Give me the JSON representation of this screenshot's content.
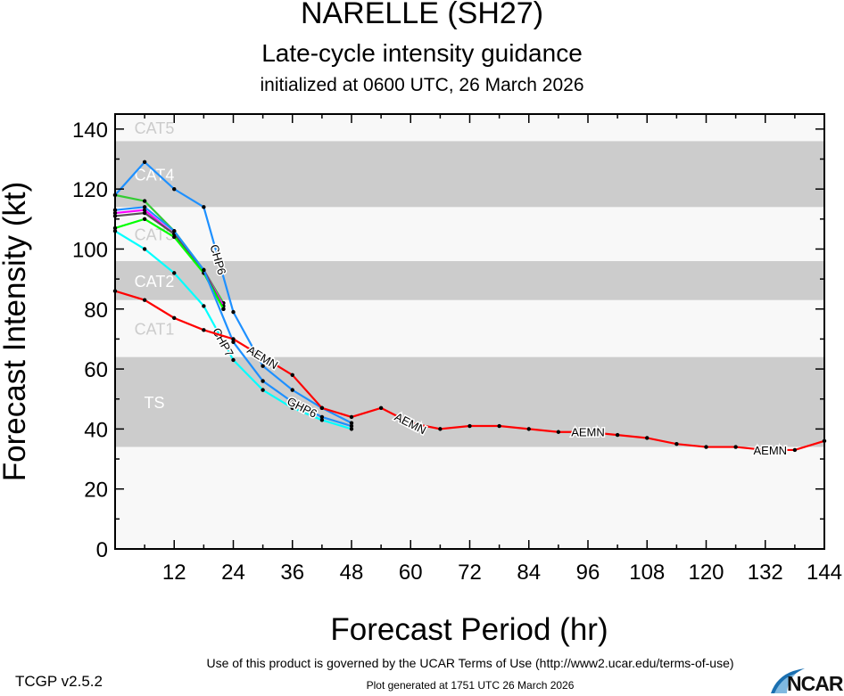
{
  "header": {
    "title": "NARELLE (SH27)",
    "subtitle": "Late-cycle intensity guidance",
    "initialized": "initialized at 0600 UTC, 26 March 2026"
  },
  "footer": {
    "terms": "Use of this product is governed by the UCAR Terms of Use (http://www2.ucar.edu/terms-of-use)",
    "generated": "Plot generated at 1751 UTC   26 March 2026",
    "version": "TCGP v2.5.2",
    "logo": "NCAR"
  },
  "chart_data": {
    "type": "line",
    "xlabel": "Forecast Period (hr)",
    "ylabel": "Forecast Intensity (kt)",
    "xlim": [
      0,
      144
    ],
    "ylim": [
      0,
      145
    ],
    "xticks": [
      12,
      24,
      36,
      48,
      60,
      72,
      84,
      96,
      108,
      120,
      132,
      144
    ],
    "yticks": [
      0,
      20,
      40,
      60,
      80,
      100,
      120,
      140
    ],
    "grid": false,
    "categories_bands": [
      {
        "label": "TS",
        "min": 34,
        "max": 64,
        "fill": "#cccccc",
        "text_color": "#ffffff"
      },
      {
        "label": "CAT1",
        "min": 64,
        "max": 83,
        "fill": "#f8f8f8",
        "text_color": "#cccccc"
      },
      {
        "label": "CAT2",
        "min": 83,
        "max": 96,
        "fill": "#cccccc",
        "text_color": "#ffffff"
      },
      {
        "label": "CAT3",
        "min": 96,
        "max": 114,
        "fill": "#f8f8f8",
        "text_color": "#cccccc"
      },
      {
        "label": "CAT4",
        "min": 114,
        "max": 136,
        "fill": "#cccccc",
        "text_color": "#ffffff"
      },
      {
        "label": "CAT5",
        "min": 136,
        "max": 145,
        "fill": "#f8f8f8",
        "text_color": "#cccccc"
      }
    ],
    "series": [
      {
        "name": "AEMN",
        "color": "#ff0000",
        "x": [
          0,
          6,
          12,
          18,
          24,
          30,
          36,
          42,
          48,
          54,
          60,
          66,
          72,
          78,
          84,
          90,
          96,
          102,
          108,
          114,
          120,
          126,
          132,
          138,
          144
        ],
        "y": [
          86,
          83,
          77,
          73,
          70,
          64,
          58,
          47,
          44,
          47,
          42,
          40,
          41,
          41,
          40,
          39,
          39,
          38,
          37,
          35,
          34,
          34,
          33,
          33,
          36
        ],
        "labels": [
          30,
          60,
          96,
          133
        ]
      },
      {
        "name": "CHP6",
        "color": "#1e90ff",
        "x": [
          0,
          6,
          12,
          18,
          24,
          30,
          36,
          42,
          48
        ],
        "y": [
          118,
          129,
          120,
          114,
          79,
          61,
          53,
          47,
          42
        ],
        "labels": [
          21
        ]
      },
      {
        "name": "GHP6",
        "color": "#1e90ff",
        "x": [
          0,
          6,
          12,
          18,
          24,
          30,
          36,
          42,
          48
        ],
        "y": [
          113,
          114,
          106,
          93,
          69,
          56,
          49,
          44,
          41
        ],
        "labels": [
          38
        ]
      },
      {
        "name": "CHP7",
        "color": "#00ffff",
        "x": [
          0,
          6,
          12,
          18,
          24,
          30,
          36,
          42,
          48
        ],
        "y": [
          106,
          100,
          92,
          81,
          63,
          53,
          47,
          43,
          40
        ],
        "labels": [
          22
        ]
      },
      {
        "color": "#33cc33",
        "x": [
          0,
          6,
          12,
          18,
          22
        ],
        "y": [
          118,
          116,
          106,
          93,
          82
        ]
      },
      {
        "color": "#ff00ff",
        "x": [
          0,
          6,
          12,
          18,
          22
        ],
        "y": [
          112,
          113,
          105,
          93,
          81
        ]
      },
      {
        "color": "#555555",
        "x": [
          0,
          6,
          12,
          18,
          22
        ],
        "y": [
          111,
          112,
          105,
          93,
          80
        ]
      },
      {
        "color": "#00ff00",
        "x": [
          0,
          6,
          12,
          18,
          22
        ],
        "y": [
          107,
          110,
          104,
          92,
          80
        ]
      }
    ]
  }
}
